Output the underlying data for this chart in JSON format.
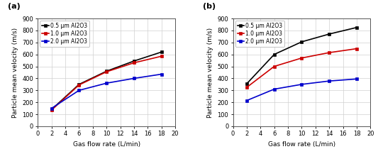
{
  "panel_a": {
    "label": "(a)",
    "x": [
      2,
      6,
      10,
      14,
      18
    ],
    "series": [
      {
        "name": "0.5 μm Al2O3",
        "color": "#000000",
        "values": [
          140,
          350,
          460,
          545,
          620
        ]
      },
      {
        "name": "1.0 μm Al2O3",
        "color": "#cc0000",
        "values": [
          135,
          345,
          455,
          530,
          585
        ]
      },
      {
        "name": "2.0 μm Al2O3",
        "color": "#0000cc",
        "values": [
          150,
          300,
          360,
          400,
          435
        ]
      }
    ],
    "xlabel": "Gas flow rate (L/min)",
    "ylabel": "Particle mean velocity (m/s)",
    "ylim": [
      0,
      900
    ],
    "xlim": [
      0,
      20
    ],
    "yticks": [
      0,
      100,
      200,
      300,
      400,
      500,
      600,
      700,
      800,
      900
    ],
    "xticks": [
      0,
      2,
      4,
      6,
      8,
      10,
      12,
      14,
      16,
      18,
      20
    ]
  },
  "panel_b": {
    "label": "(b)",
    "x": [
      2,
      6,
      10,
      14,
      18
    ],
    "series": [
      {
        "name": "0.5 μm Al2O3",
        "color": "#000000",
        "values": [
          355,
          600,
          705,
          770,
          825
        ]
      },
      {
        "name": "1.0 μm Al2O3",
        "color": "#cc0000",
        "values": [
          325,
          500,
          570,
          615,
          648
        ]
      },
      {
        "name": "2.0 μm Al2O3",
        "color": "#0000cc",
        "values": [
          215,
          310,
          350,
          378,
          395
        ]
      }
    ],
    "xlabel": "Gas flow rate (L/min)",
    "ylabel": "Particle mean velocity (m/s)",
    "ylim": [
      0,
      900
    ],
    "xlim": [
      0,
      20
    ],
    "yticks": [
      0,
      100,
      200,
      300,
      400,
      500,
      600,
      700,
      800,
      900
    ],
    "xticks": [
      0,
      2,
      4,
      6,
      8,
      10,
      12,
      14,
      16,
      18,
      20
    ]
  },
  "marker": "s",
  "markersize": 3.5,
  "linewidth": 1.2,
  "grid_color": "#d0d0d0",
  "grid_alpha": 1.0,
  "font_size_label": 6.5,
  "font_size_tick": 6,
  "font_size_legend": 5.5,
  "font_size_panel_label": 8,
  "background_color": "#ffffff"
}
